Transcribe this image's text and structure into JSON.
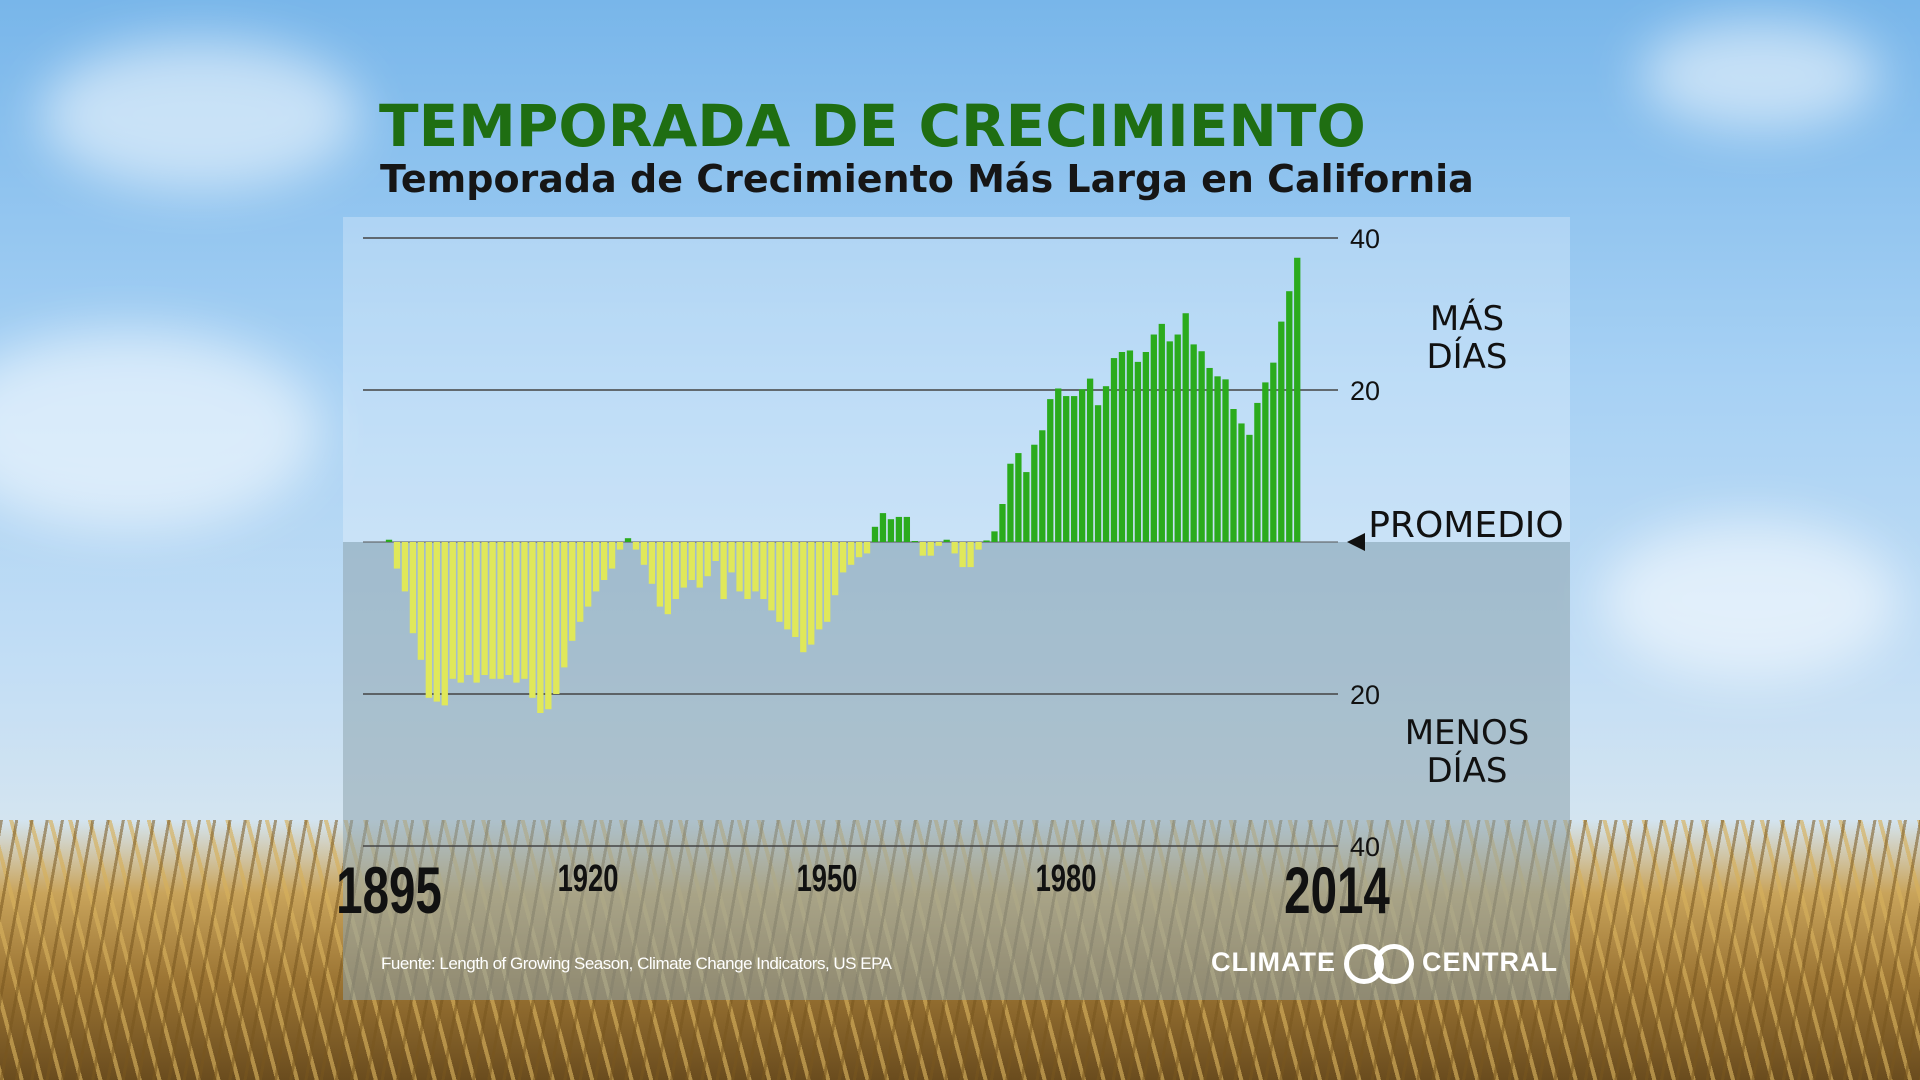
{
  "header": {
    "title": "TEMPORADA DE CRECIMIENTO",
    "subtitle": "Temporada de Crecimiento Más Larga en California"
  },
  "labels": {
    "more_days": [
      "MÁS",
      "DÍAS"
    ],
    "fewer_days": [
      "MENOS",
      "DÍAS"
    ],
    "average": "PROMEDIO",
    "source": "Fuente: Length of Growing Season, Climate Change Indicators, US EPA",
    "logo_left": "CLIMATE",
    "logo_right": "CENTRAL"
  },
  "colors": {
    "title": "#1f6e12",
    "positive_bar": "#2bab1d",
    "negative_bar": "#e0e85a",
    "gridline": "#444444"
  },
  "chart_data": {
    "type": "bar",
    "title": "TEMPORADA DE CRECIMIENTO",
    "subtitle": "Temporada de Crecimiento Más Larga en California",
    "x_start": 1895,
    "x_end": 2014,
    "x_ticks": [
      {
        "year": 1895,
        "label": "1895",
        "size": "big"
      },
      {
        "year": 1920,
        "label": "1920",
        "size": "small"
      },
      {
        "year": 1950,
        "label": "1950",
        "size": "small"
      },
      {
        "year": 1980,
        "label": "1980",
        "size": "small"
      },
      {
        "year": 2014,
        "label": "2014",
        "size": "big"
      }
    ],
    "y_ticks": [
      {
        "value": 40,
        "label": "40"
      },
      {
        "value": 20,
        "label": "20"
      },
      {
        "value": -20,
        "label": "20"
      },
      {
        "value": -40,
        "label": "40"
      }
    ],
    "ylim": [
      -40,
      40
    ],
    "baseline_label": "PROMEDIO",
    "values": [
      0.3,
      -3.5,
      -6.5,
      -12,
      -15.5,
      -20.5,
      -21,
      -21.5,
      -18,
      -18.5,
      -17.5,
      -18.5,
      -17.5,
      -18,
      -18,
      -17.5,
      -18.5,
      -18,
      -20.5,
      -22.5,
      -22,
      -20,
      -16.5,
      -13,
      -10.5,
      -8.5,
      -6.5,
      -5,
      -3.5,
      -1,
      0.5,
      -1,
      -3,
      -5.5,
      -8.5,
      -9.5,
      -7.5,
      -6,
      -5,
      -6,
      -4.5,
      -2.5,
      -7.5,
      -4,
      -6.5,
      -7.5,
      -6.5,
      -7.5,
      -9,
      -10.5,
      -11.5,
      -12.5,
      -14.5,
      -13.5,
      -11.5,
      -10.5,
      -7,
      -4,
      -3,
      -2,
      -1.5,
      2,
      3.8,
      3,
      3.3,
      3.3,
      0,
      -1.8,
      -1.8,
      -0.5,
      0.3,
      -1.5,
      -3.3,
      -3.3,
      -1,
      0.2,
      1.4,
      5,
      10.3,
      11.7,
      9.2,
      12.8,
      14.7,
      18.8,
      20.2,
      19.2,
      19.2,
      20.1,
      21.5,
      18,
      20.5,
      24.2,
      25,
      25.2,
      23.7,
      25,
      27.3,
      28.7,
      26.4,
      27.3,
      30.1,
      26,
      25.1,
      22.9,
      21.8,
      21.4,
      17.5,
      15.6,
      14.1,
      18.3,
      21,
      23.6,
      29,
      33,
      37.4
    ]
  }
}
